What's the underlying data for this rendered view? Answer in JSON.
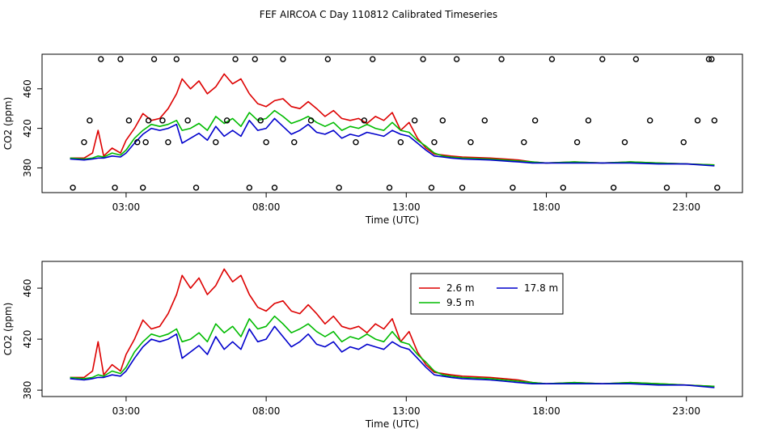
{
  "title": "FEF AIRCOA C  Day 110812  Calibrated Timeseries",
  "colors": {
    "2.6 m": "#dd0000",
    "9.5 m": "#00bb00",
    "17.8 m": "#0000cc",
    "axis": "#000000"
  },
  "chart_data": [
    {
      "type": "line",
      "panel": "top",
      "xlabel": "Time (UTC)",
      "ylabel": "CO2 (ppm)",
      "xlim": [
        0.0,
        25.0
      ],
      "ylim": [
        355,
        495
      ],
      "xticks": [
        3,
        8,
        13,
        18,
        23
      ],
      "xtick_labels": [
        "03:00",
        "08:00",
        "13:00",
        "18:00",
        "23:00"
      ],
      "yticks": [
        380,
        420,
        460
      ],
      "ytick_labels": [
        "380",
        "420",
        "460"
      ],
      "series": [
        {
          "name": "2.6 m",
          "color": "#dd0000",
          "x": [
            1.0,
            1.5,
            1.8,
            2.0,
            2.2,
            2.5,
            2.8,
            3.0,
            3.3,
            3.6,
            3.9,
            4.2,
            4.5,
            4.8,
            5.0,
            5.3,
            5.6,
            5.9,
            6.2,
            6.5,
            6.8,
            7.1,
            7.4,
            7.7,
            8.0,
            8.3,
            8.6,
            8.9,
            9.2,
            9.5,
            9.8,
            10.1,
            10.4,
            10.7,
            11.0,
            11.3,
            11.6,
            11.9,
            12.2,
            12.5,
            12.8,
            13.1,
            13.4,
            13.7,
            14.0,
            14.3,
            14.6,
            15.0,
            16.0,
            17.0,
            17.5,
            18.0,
            19.0,
            20.0,
            21.0,
            22.0,
            23.0,
            24.0
          ],
          "values": [
            390,
            390,
            395,
            418,
            392,
            400,
            395,
            408,
            420,
            435,
            428,
            430,
            440,
            455,
            470,
            460,
            468,
            455,
            462,
            475,
            465,
            470,
            455,
            445,
            442,
            448,
            450,
            442,
            440,
            447,
            440,
            432,
            438,
            430,
            428,
            430,
            425,
            432,
            428,
            436,
            418,
            426,
            410,
            400,
            394,
            393,
            392,
            391,
            390,
            388,
            386,
            385,
            386,
            385,
            386,
            385,
            384,
            383
          ]
        },
        {
          "name": "9.5 m",
          "color": "#00bb00",
          "x": [
            1.0,
            1.5,
            1.8,
            2.0,
            2.2,
            2.5,
            2.8,
            3.0,
            3.3,
            3.6,
            3.9,
            4.2,
            4.5,
            4.8,
            5.0,
            5.3,
            5.6,
            5.9,
            6.2,
            6.5,
            6.8,
            7.1,
            7.4,
            7.7,
            8.0,
            8.3,
            8.6,
            8.9,
            9.2,
            9.5,
            9.8,
            10.1,
            10.4,
            10.7,
            11.0,
            11.3,
            11.6,
            11.9,
            12.2,
            12.5,
            12.8,
            13.1,
            13.4,
            13.7,
            14.0,
            14.3,
            14.6,
            15.0,
            16.0,
            17.0,
            17.5,
            18.0,
            19.0,
            20.0,
            21.0,
            22.0,
            23.0,
            24.0
          ],
          "values": [
            390,
            389,
            390,
            392,
            391,
            395,
            393,
            398,
            410,
            418,
            424,
            422,
            424,
            428,
            418,
            420,
            425,
            418,
            432,
            425,
            430,
            422,
            436,
            428,
            430,
            438,
            432,
            425,
            428,
            432,
            426,
            422,
            426,
            418,
            422,
            420,
            424,
            420,
            418,
            426,
            418,
            416,
            408,
            402,
            395,
            392,
            391,
            390,
            389,
            387,
            386,
            385,
            386,
            385,
            386,
            385,
            384,
            383
          ]
        },
        {
          "name": "17.8 m",
          "color": "#0000cc",
          "x": [
            1.0,
            1.5,
            1.8,
            2.0,
            2.2,
            2.5,
            2.8,
            3.0,
            3.3,
            3.6,
            3.9,
            4.2,
            4.5,
            4.8,
            5.0,
            5.3,
            5.6,
            5.9,
            6.2,
            6.5,
            6.8,
            7.1,
            7.4,
            7.7,
            8.0,
            8.3,
            8.6,
            8.9,
            9.2,
            9.5,
            9.8,
            10.1,
            10.4,
            10.7,
            11.0,
            11.3,
            11.6,
            11.9,
            12.2,
            12.5,
            12.8,
            13.1,
            13.4,
            13.7,
            14.0,
            14.3,
            14.6,
            15.0,
            16.0,
            17.0,
            17.5,
            18.0,
            19.0,
            20.0,
            21.0,
            22.0,
            23.0,
            24.0
          ],
          "values": [
            389,
            388,
            389,
            390,
            390,
            392,
            391,
            395,
            405,
            414,
            420,
            418,
            420,
            424,
            405,
            410,
            415,
            408,
            422,
            412,
            418,
            412,
            428,
            418,
            420,
            430,
            422,
            414,
            418,
            424,
            416,
            414,
            418,
            410,
            414,
            412,
            416,
            414,
            412,
            418,
            414,
            412,
            405,
            398,
            392,
            391,
            390,
            389,
            388,
            386,
            385,
            385,
            385,
            385,
            385,
            384,
            384,
            382
          ]
        }
      ],
      "markers": {
        "shape": "circle",
        "x": [
          1.1,
          1.5,
          1.7,
          2.1,
          2.6,
          2.8,
          3.1,
          3.4,
          3.6,
          3.7,
          3.8,
          4.0,
          4.3,
          4.5,
          4.8,
          5.2,
          5.5,
          6.2,
          6.6,
          6.9,
          7.4,
          7.6,
          7.8,
          8.0,
          8.3,
          8.6,
          9.0,
          9.6,
          10.2,
          10.6,
          11.2,
          11.5,
          11.8,
          12.4,
          12.8,
          13.3,
          13.6,
          13.9,
          14.0,
          14.3,
          14.8,
          15.0,
          15.3,
          15.8,
          16.4,
          16.8,
          17.2,
          17.6,
          18.2,
          18.6,
          19.1,
          19.5,
          20.0,
          20.4,
          20.8,
          21.2,
          21.7,
          22.3,
          22.9,
          23.4,
          23.8,
          23.9,
          24.0,
          24.1
        ],
        "values": [
          360,
          406,
          428,
          490,
          360,
          490,
          428,
          406,
          360,
          406,
          428,
          490,
          428,
          406,
          490,
          428,
          360,
          406,
          428,
          490,
          360,
          490,
          428,
          406,
          360,
          490,
          406,
          428,
          490,
          360,
          406,
          428,
          490,
          360,
          406,
          428,
          490,
          360,
          406,
          428,
          490,
          360,
          406,
          428,
          490,
          360,
          406,
          428,
          490,
          360,
          406,
          428,
          490,
          360,
          406,
          490,
          428,
          360,
          406,
          428,
          490,
          490,
          428,
          360
        ]
      },
      "legend": null
    },
    {
      "type": "line",
      "panel": "bottom",
      "xlabel": "Time (UTC)",
      "ylabel": "CO2 (ppm)",
      "xlim": [
        0.0,
        25.0
      ],
      "ylim": [
        375,
        481
      ],
      "xticks": [
        3,
        8,
        13,
        18,
        23
      ],
      "xtick_labels": [
        "03:00",
        "08:00",
        "13:00",
        "18:00",
        "23:00"
      ],
      "yticks": [
        380,
        420,
        460
      ],
      "ytick_labels": [
        "380",
        "420",
        "460"
      ],
      "series": [
        {
          "name": "2.6 m",
          "color": "#dd0000",
          "x": [
            1.0,
            1.5,
            1.8,
            2.0,
            2.2,
            2.5,
            2.8,
            3.0,
            3.3,
            3.6,
            3.9,
            4.2,
            4.5,
            4.8,
            5.0,
            5.3,
            5.6,
            5.9,
            6.2,
            6.5,
            6.8,
            7.1,
            7.4,
            7.7,
            8.0,
            8.3,
            8.6,
            8.9,
            9.2,
            9.5,
            9.8,
            10.1,
            10.4,
            10.7,
            11.0,
            11.3,
            11.6,
            11.9,
            12.2,
            12.5,
            12.8,
            13.1,
            13.4,
            13.7,
            14.0,
            14.3,
            14.6,
            15.0,
            16.0,
            17.0,
            17.5,
            18.0,
            19.0,
            20.0,
            21.0,
            22.0,
            23.0,
            24.0
          ],
          "values": [
            390,
            390,
            395,
            418,
            392,
            400,
            395,
            408,
            420,
            435,
            428,
            430,
            440,
            455,
            470,
            460,
            468,
            455,
            462,
            475,
            465,
            470,
            455,
            445,
            442,
            448,
            450,
            442,
            440,
            447,
            440,
            432,
            438,
            430,
            428,
            430,
            425,
            432,
            428,
            436,
            418,
            426,
            410,
            400,
            394,
            393,
            392,
            391,
            390,
            388,
            386,
            385,
            386,
            385,
            386,
            385,
            384,
            383
          ]
        },
        {
          "name": "9.5 m",
          "color": "#00bb00",
          "x": [
            1.0,
            1.5,
            1.8,
            2.0,
            2.2,
            2.5,
            2.8,
            3.0,
            3.3,
            3.6,
            3.9,
            4.2,
            4.5,
            4.8,
            5.0,
            5.3,
            5.6,
            5.9,
            6.2,
            6.5,
            6.8,
            7.1,
            7.4,
            7.7,
            8.0,
            8.3,
            8.6,
            8.9,
            9.2,
            9.5,
            9.8,
            10.1,
            10.4,
            10.7,
            11.0,
            11.3,
            11.6,
            11.9,
            12.2,
            12.5,
            12.8,
            13.1,
            13.4,
            13.7,
            14.0,
            14.3,
            14.6,
            15.0,
            16.0,
            17.0,
            17.5,
            18.0,
            19.0,
            20.0,
            21.0,
            22.0,
            23.0,
            24.0
          ],
          "values": [
            390,
            389,
            390,
            392,
            391,
            395,
            393,
            398,
            410,
            418,
            424,
            422,
            424,
            428,
            418,
            420,
            425,
            418,
            432,
            425,
            430,
            422,
            436,
            428,
            430,
            438,
            432,
            425,
            428,
            432,
            426,
            422,
            426,
            418,
            422,
            420,
            424,
            420,
            418,
            426,
            418,
            416,
            408,
            402,
            395,
            392,
            391,
            390,
            389,
            387,
            386,
            385,
            386,
            385,
            386,
            385,
            384,
            383
          ]
        },
        {
          "name": "17.8 m",
          "color": "#0000cc",
          "x": [
            1.0,
            1.5,
            1.8,
            2.0,
            2.2,
            2.5,
            2.8,
            3.0,
            3.3,
            3.6,
            3.9,
            4.2,
            4.5,
            4.8,
            5.0,
            5.3,
            5.6,
            5.9,
            6.2,
            6.5,
            6.8,
            7.1,
            7.4,
            7.7,
            8.0,
            8.3,
            8.6,
            8.9,
            9.2,
            9.5,
            9.8,
            10.1,
            10.4,
            10.7,
            11.0,
            11.3,
            11.6,
            11.9,
            12.2,
            12.5,
            12.8,
            13.1,
            13.4,
            13.7,
            14.0,
            14.3,
            14.6,
            15.0,
            16.0,
            17.0,
            17.5,
            18.0,
            19.0,
            20.0,
            21.0,
            22.0,
            23.0,
            24.0
          ],
          "values": [
            389,
            388,
            389,
            390,
            390,
            392,
            391,
            395,
            405,
            414,
            420,
            418,
            420,
            424,
            405,
            410,
            415,
            408,
            422,
            412,
            418,
            412,
            428,
            418,
            420,
            430,
            422,
            414,
            418,
            424,
            416,
            414,
            418,
            410,
            414,
            412,
            416,
            414,
            412,
            418,
            414,
            412,
            405,
            398,
            392,
            391,
            390,
            389,
            388,
            386,
            385,
            385,
            385,
            385,
            385,
            384,
            384,
            382
          ]
        }
      ],
      "markers": null,
      "legend": {
        "placement": "top-center",
        "entries": [
          {
            "label": "2.6 m",
            "color": "#dd0000"
          },
          {
            "label": "9.5 m",
            "color": "#00bb00"
          },
          {
            "label": "17.8 m",
            "color": "#0000cc"
          }
        ]
      }
    }
  ]
}
